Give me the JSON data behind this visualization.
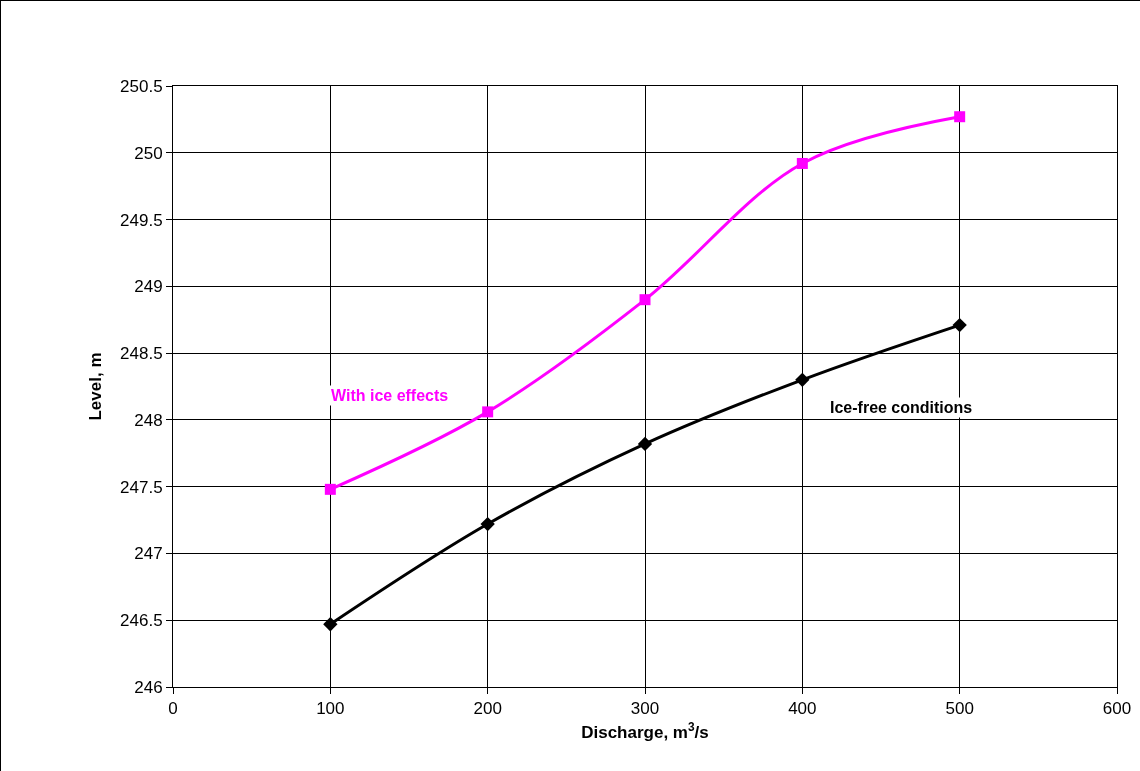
{
  "chart_data": {
    "type": "line",
    "xlabel": "Discharge, m$^{3}$/s",
    "ylabel": "Level, m",
    "x": [
      100,
      200,
      300,
      400,
      500
    ],
    "series": [
      {
        "name": "With ice effects",
        "color": "#ff00ff",
        "marker": "square",
        "values": [
          247.48,
          248.06,
          248.9,
          249.92,
          250.27
        ]
      },
      {
        "name": "Ice-free conditions",
        "color": "#000000",
        "marker": "diamond",
        "values": [
          246.47,
          247.22,
          247.82,
          248.3,
          248.71
        ]
      }
    ],
    "xlim": [
      0,
      600
    ],
    "xticks": [
      0,
      100,
      200,
      300,
      400,
      500,
      600
    ],
    "ylim": [
      246,
      250.5
    ],
    "yticks": [
      246,
      246.5,
      247,
      247.5,
      248,
      248.5,
      249,
      249.5,
      250,
      250.5
    ],
    "grid": true,
    "legend": false
  }
}
